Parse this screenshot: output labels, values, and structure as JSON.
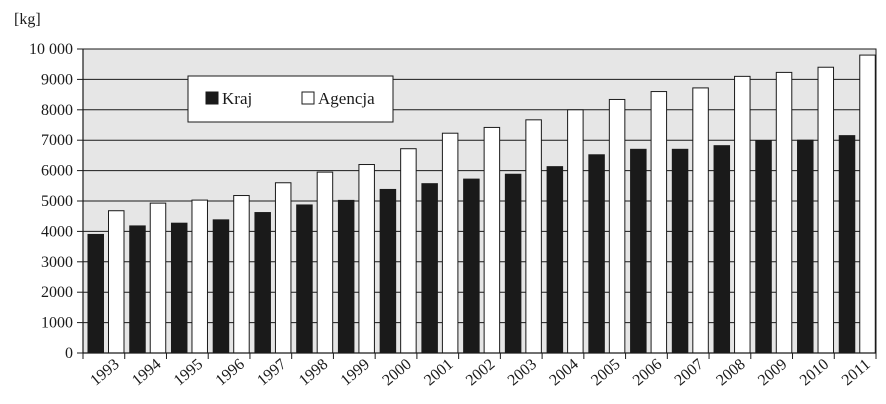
{
  "chart_data": {
    "type": "bar",
    "unit_label": "[kg]",
    "categories": [
      "1993",
      "1994",
      "1995",
      "1996",
      "1997",
      "1998",
      "1999",
      "2000",
      "2001",
      "2002",
      "2003",
      "2004",
      "2005",
      "2006",
      "2007",
      "2008",
      "2009",
      "2010",
      "2011"
    ],
    "series": [
      {
        "name": "Kraj",
        "color": "#1a1a1a",
        "values": [
          3900,
          4180,
          4270,
          4380,
          4620,
          4870,
          5020,
          5380,
          5570,
          5720,
          5880,
          6130,
          6520,
          6700,
          6700,
          6820,
          6980,
          7000,
          7150
        ]
      },
      {
        "name": "Agencja",
        "color": "#ffffff",
        "values": [
          4680,
          4930,
          5030,
          5180,
          5600,
          5950,
          6200,
          6720,
          7230,
          7420,
          7670,
          8000,
          8340,
          8600,
          8720,
          9100,
          9230,
          9400,
          9800
        ]
      }
    ],
    "yticks": [
      "0",
      "1000",
      "2000",
      "3000",
      "4000",
      "5000",
      "6000",
      "7000",
      "8000",
      "9000",
      "10 000"
    ],
    "ylim": [
      0,
      10000
    ],
    "grid": true,
    "legend": "top-left, inside plot",
    "plot_background": "#e6e6e6"
  }
}
